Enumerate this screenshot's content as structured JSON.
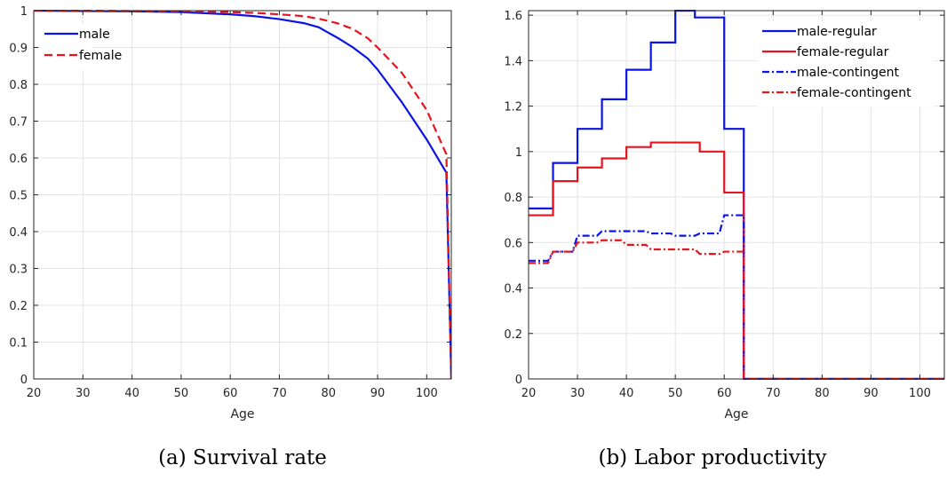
{
  "colors": {
    "male": "#0a14e6",
    "female": "#e6141e"
  },
  "chart_data": [
    {
      "type": "line",
      "caption": "(a)  Survival rate",
      "xlabel": "Age",
      "ylabel": "",
      "xlim": [
        20,
        105
      ],
      "ylim": [
        0,
        1
      ],
      "xticks": [
        20,
        30,
        40,
        50,
        60,
        70,
        80,
        90,
        100
      ],
      "yticks": [
        0,
        0.1,
        0.2,
        0.3,
        0.4,
        0.5,
        0.6,
        0.7,
        0.8,
        0.9,
        1
      ],
      "ytick_labels": [
        "0",
        "0.1",
        "0.2",
        "0.3",
        "0.4",
        "0.5",
        "0.6",
        "0.7",
        "0.8",
        "0.9",
        "1"
      ],
      "grid": true,
      "legend_position": "top-left",
      "series": [
        {
          "name": "male",
          "color": "#0a14e6",
          "dash": "solid",
          "x": [
            20,
            30,
            40,
            50,
            60,
            65,
            70,
            75,
            78,
            80,
            82,
            85,
            88,
            90,
            95,
            100,
            104,
            105
          ],
          "y": [
            1.0,
            0.999,
            0.998,
            0.996,
            0.99,
            0.985,
            0.977,
            0.966,
            0.955,
            0.94,
            0.925,
            0.9,
            0.87,
            0.84,
            0.75,
            0.65,
            0.56,
            0.0
          ]
        },
        {
          "name": "female",
          "color": "#e6141e",
          "dash": "dashed",
          "x": [
            20,
            30,
            40,
            50,
            60,
            65,
            70,
            75,
            78,
            80,
            82,
            85,
            88,
            90,
            95,
            100,
            104,
            105
          ],
          "y": [
            1.0,
            1.0,
            0.999,
            0.998,
            0.996,
            0.994,
            0.99,
            0.985,
            0.978,
            0.972,
            0.965,
            0.95,
            0.925,
            0.9,
            0.83,
            0.73,
            0.61,
            0.0
          ]
        }
      ]
    },
    {
      "type": "line",
      "caption": "(b)  Labor productivity",
      "xlabel": "Age",
      "ylabel": "",
      "xlim": [
        20,
        105
      ],
      "ylim": [
        0,
        1.62
      ],
      "xticks": [
        20,
        30,
        40,
        50,
        60,
        70,
        80,
        90,
        100
      ],
      "yticks": [
        0,
        0.2,
        0.4,
        0.6,
        0.8,
        1,
        1.2,
        1.4,
        1.6
      ],
      "ytick_labels": [
        "0",
        "0.2",
        "0.4",
        "0.6",
        "0.8",
        "1",
        "1.2",
        "1.4",
        "1.6"
      ],
      "grid": true,
      "legend_position": "top-right",
      "series": [
        {
          "name": "male-regular",
          "color": "#0a14e6",
          "dash": "solid",
          "x": [
            20,
            25,
            25,
            30,
            30,
            35,
            35,
            40,
            40,
            45,
            45,
            50,
            50,
            54,
            54,
            60,
            60,
            64,
            64,
            65,
            105
          ],
          "y": [
            0.75,
            0.75,
            0.95,
            0.95,
            1.1,
            1.1,
            1.23,
            1.23,
            1.36,
            1.36,
            1.48,
            1.48,
            1.62,
            1.62,
            1.59,
            1.59,
            1.1,
            1.1,
            0.0,
            0.0,
            0.0
          ]
        },
        {
          "name": "female-regular",
          "color": "#e6141e",
          "dash": "solid",
          "x": [
            20,
            23,
            23,
            25,
            25,
            30,
            30,
            35,
            35,
            40,
            40,
            45,
            45,
            55,
            55,
            60,
            60,
            64,
            64,
            65,
            105
          ],
          "y": [
            0.72,
            0.72,
            0.72,
            0.72,
            0.87,
            0.87,
            0.93,
            0.93,
            0.97,
            0.97,
            1.02,
            1.02,
            1.04,
            1.04,
            1.0,
            1.0,
            0.82,
            0.82,
            0.0,
            0.0,
            0.0
          ]
        },
        {
          "name": "male-contingent",
          "color": "#0a14e6",
          "dash": "dashdot",
          "x": [
            20,
            24,
            25,
            29,
            30,
            34,
            35,
            39,
            40,
            44,
            45,
            49,
            50,
            54,
            55,
            59,
            60,
            64,
            64,
            65,
            105
          ],
          "y": [
            0.52,
            0.52,
            0.56,
            0.56,
            0.63,
            0.63,
            0.65,
            0.65,
            0.65,
            0.65,
            0.64,
            0.64,
            0.63,
            0.63,
            0.64,
            0.64,
            0.72,
            0.72,
            0.0,
            0.0,
            0.0
          ]
        },
        {
          "name": "female-contingent",
          "color": "#e6141e",
          "dash": "dashdot",
          "x": [
            20,
            24,
            25,
            29,
            30,
            34,
            35,
            39,
            40,
            44,
            45,
            49,
            50,
            54,
            55,
            59,
            60,
            64,
            64,
            65,
            105
          ],
          "y": [
            0.51,
            0.51,
            0.56,
            0.56,
            0.6,
            0.6,
            0.61,
            0.61,
            0.59,
            0.59,
            0.57,
            0.57,
            0.57,
            0.57,
            0.55,
            0.55,
            0.56,
            0.56,
            0.0,
            0.0,
            0.0
          ]
        }
      ]
    }
  ]
}
